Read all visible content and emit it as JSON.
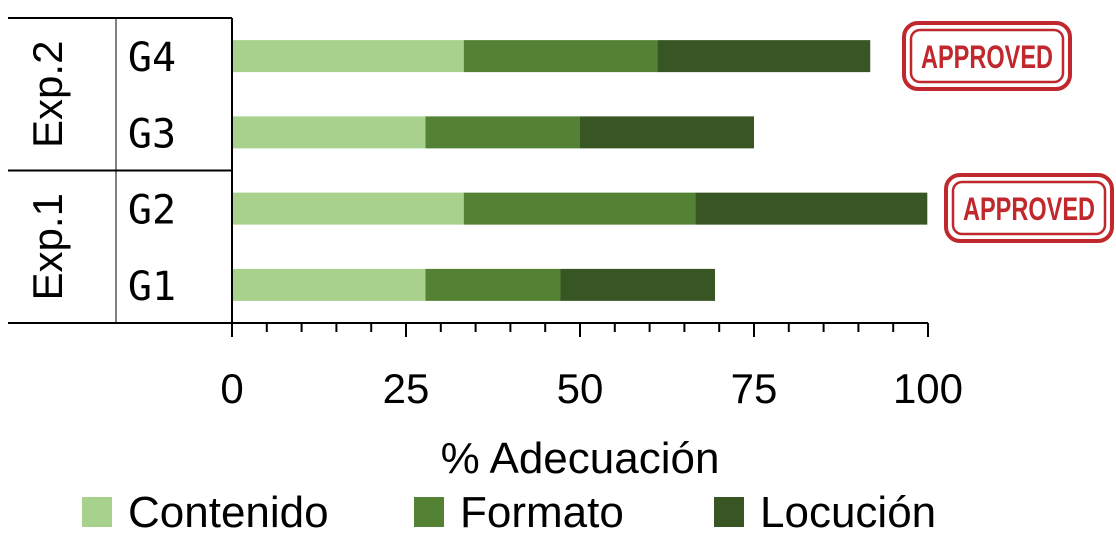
{
  "chart_data": {
    "type": "bar",
    "orientation": "horizontal",
    "stacked": true,
    "categories": [
      "G1",
      "G2",
      "G3",
      "G4"
    ],
    "groups": [
      {
        "label": "Exp.1",
        "categories": [
          "G1",
          "G2"
        ]
      },
      {
        "label": "Exp.2",
        "categories": [
          "G3",
          "G4"
        ]
      }
    ],
    "series": [
      {
        "name": "Contenido",
        "color": "#a9d18e",
        "values": [
          27.8,
          33.3,
          27.8,
          33.3
        ]
      },
      {
        "name": "Formato",
        "color": "#548235",
        "values": [
          19.4,
          33.3,
          22.2,
          27.8
        ]
      },
      {
        "name": "Locución",
        "color": "#375623",
        "values": [
          22.2,
          33.3,
          25.0,
          30.6
        ]
      }
    ],
    "xlabel": "% Adecuación",
    "ylabel": "",
    "xlim": [
      0,
      100
    ],
    "xticks": [
      0,
      25,
      50,
      75,
      100
    ],
    "grid": false,
    "legend_position": "bottom",
    "stamps": [
      {
        "category": "G4",
        "text": "APPROVED",
        "color": "#c0282d"
      },
      {
        "category": "G2",
        "text": "APPROVED",
        "color": "#c0282d"
      }
    ]
  }
}
